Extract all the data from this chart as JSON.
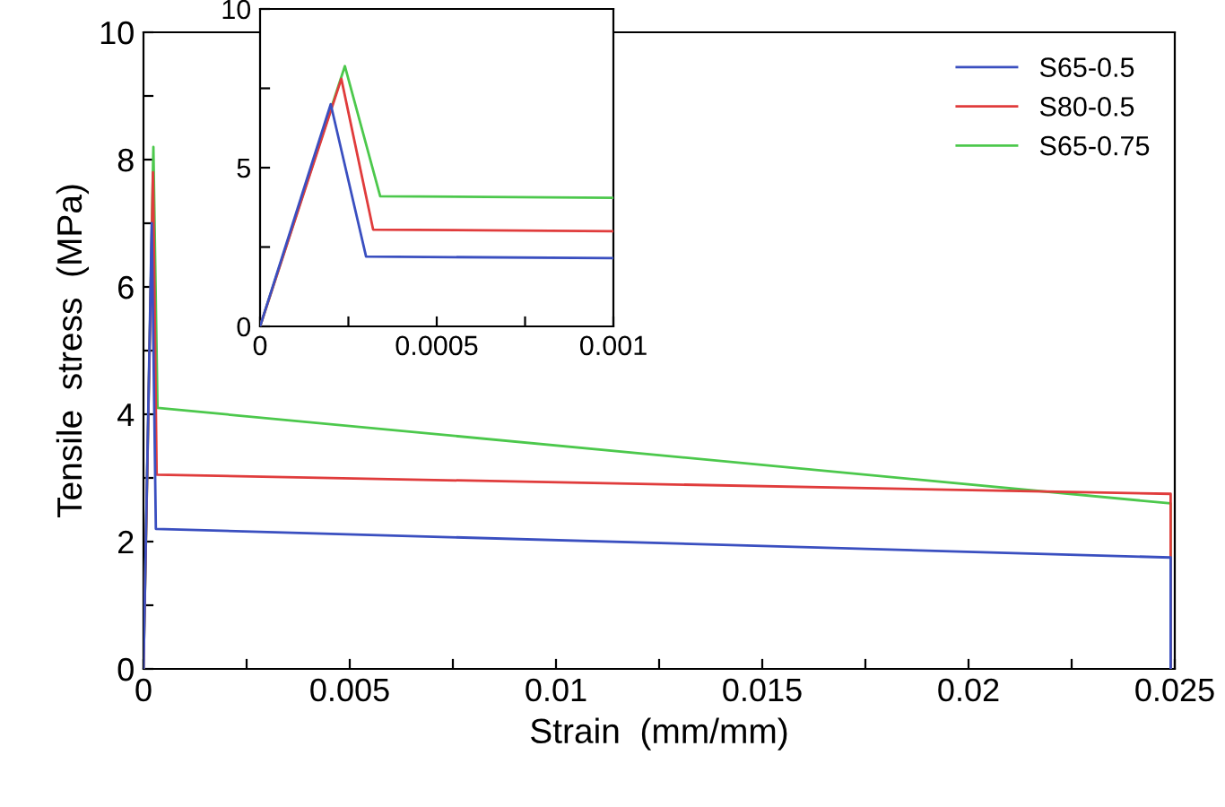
{
  "chart_data": [
    {
      "type": "line",
      "xlabel": "Strain  (mm/mm)",
      "ylabel": "Tensile  stress  (MPa)",
      "xlim": [
        0,
        0.025
      ],
      "ylim": [
        0,
        10
      ],
      "xticks": [
        0,
        {
          "value": 0.0025,
          "label": null
        },
        0.005,
        {
          "value": 0.0075,
          "label": null
        },
        0.01,
        {
          "value": 0.0125,
          "label": null
        },
        0.015,
        {
          "value": 0.0175,
          "label": null
        },
        0.02,
        {
          "value": 0.0225,
          "label": null
        },
        0.025
      ],
      "yticks": [
        0,
        {
          "value": 1,
          "label": null
        },
        2,
        {
          "value": 3,
          "label": null
        },
        4,
        {
          "value": 5,
          "label": null
        },
        6,
        {
          "value": 7,
          "label": null
        },
        8,
        {
          "value": 9,
          "label": null
        },
        10
      ],
      "grid": false,
      "legend": "top right",
      "marker": "none",
      "line_style": "solid",
      "series": [
        {
          "name": "S65-0.5",
          "color": "#3a4fc0",
          "x": [
            0,
            0.0002,
            0.0003,
            0.0249,
            0.0249
          ],
          "values": [
            0,
            7.0,
            2.2,
            1.75,
            0
          ]
        },
        {
          "name": "S80-0.5",
          "color": "#e03c3c",
          "x": [
            0,
            0.00023,
            0.00032,
            0.0249,
            0.0249
          ],
          "values": [
            0,
            7.8,
            3.05,
            2.75,
            0
          ]
        },
        {
          "name": "S65-0.75",
          "color": "#4cc84c",
          "x": [
            0,
            0.00024,
            0.00034,
            0.0249,
            0.0249
          ],
          "values": [
            0,
            8.2,
            4.1,
            2.6,
            0
          ]
        }
      ]
    },
    {
      "type": "line",
      "xlim": [
        0,
        0.001
      ],
      "ylim": [
        0,
        10
      ],
      "xticks": [
        0,
        {
          "value": 0.00025,
          "label": null
        },
        0.0005,
        {
          "value": 0.00075,
          "label": null
        },
        0.001
      ],
      "yticks": [
        0,
        {
          "value": 2.5,
          "label": null
        },
        5,
        {
          "value": 7.5,
          "label": null
        },
        10
      ],
      "grid": false,
      "legend": false,
      "marker": "none",
      "line_style": "solid",
      "series": [
        {
          "color": "#3a4fc0",
          "x": [
            0,
            0.0002,
            0.0003,
            0.001
          ],
          "values": [
            0,
            7.0,
            2.2,
            2.15
          ]
        },
        {
          "color": "#e03c3c",
          "x": [
            0,
            0.00023,
            0.00032,
            0.001
          ],
          "values": [
            0,
            7.8,
            3.05,
            3.0
          ]
        },
        {
          "color": "#4cc84c",
          "x": [
            0,
            0.00024,
            0.00034,
            0.001
          ],
          "values": [
            0,
            8.2,
            4.1,
            4.05
          ]
        }
      ]
    }
  ]
}
